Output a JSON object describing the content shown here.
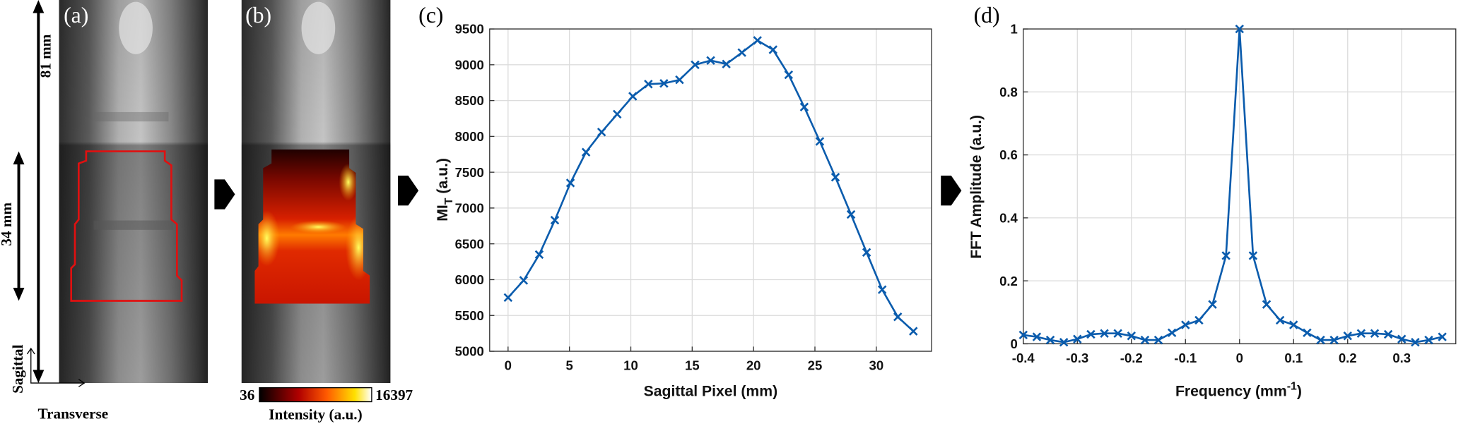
{
  "panels": {
    "a": "(a)",
    "b": "(b)",
    "c": "(c)",
    "d": "(d)"
  },
  "images": {
    "length_full": "81 mm",
    "length_roi": "34 mm",
    "axis_vertical": "Sagittal",
    "axis_horizontal": "Transverse",
    "colorbar": {
      "min": 36,
      "max": 16397,
      "label": "Intensity (a.u.)"
    }
  },
  "chart_data": [
    {
      "type": "line",
      "marker": "x",
      "color": "#0b5cad",
      "grid": true,
      "x_label": "Sagittal Pixel (mm)",
      "y_label": {
        "text": "MI",
        "sub": "T",
        "suffix": " (a.u.)"
      },
      "x": [
        0,
        1.27,
        2.54,
        3.81,
        5.08,
        6.35,
        7.62,
        8.89,
        10.16,
        11.43,
        12.7,
        13.97,
        15.24,
        16.51,
        17.78,
        19.05,
        20.32,
        21.59,
        22.86,
        24.13,
        25.4,
        26.67,
        27.94,
        29.21,
        30.48,
        31.75,
        33.02
      ],
      "values": [
        5750,
        5990,
        6350,
        6830,
        7350,
        7780,
        8060,
        8310,
        8560,
        8730,
        8740,
        8790,
        9000,
        9060,
        9010,
        9170,
        9340,
        9210,
        8860,
        8410,
        7930,
        7430,
        6910,
        6380,
        5860,
        5480,
        5280
      ],
      "xlim": [
        -1.5,
        34.5
      ],
      "xticks": [
        0,
        5,
        10,
        15,
        20,
        25,
        30
      ],
      "ylim": [
        5000,
        9500
      ],
      "yticks": [
        5000,
        5500,
        6000,
        6500,
        7000,
        7500,
        8000,
        8500,
        9000,
        9500
      ]
    },
    {
      "type": "line",
      "marker": "x",
      "color": "#0b5cad",
      "grid": true,
      "x_label": {
        "text": "Frequency (mm",
        "sup": "-1",
        "suffix": ")"
      },
      "y_label": "FFT Amplitude (a.u.)",
      "x": [
        -0.4,
        -0.375,
        -0.35,
        -0.325,
        -0.3,
        -0.275,
        -0.25,
        -0.225,
        -0.2,
        -0.175,
        -0.15,
        -0.125,
        -0.1,
        -0.075,
        -0.05,
        -0.025,
        0,
        0.025,
        0.05,
        0.075,
        0.1,
        0.125,
        0.15,
        0.175,
        0.2,
        0.225,
        0.25,
        0.275,
        0.3,
        0.325,
        0.35,
        0.375
      ],
      "values": [
        0.028,
        0.022,
        0.012,
        0.005,
        0.015,
        0.03,
        0.033,
        0.033,
        0.025,
        0.012,
        0.012,
        0.035,
        0.06,
        0.075,
        0.125,
        0.28,
        1,
        0.28,
        0.125,
        0.075,
        0.06,
        0.035,
        0.012,
        0.012,
        0.025,
        0.033,
        0.033,
        0.03,
        0.015,
        0.005,
        0.012,
        0.022
      ],
      "xlim": [
        -0.4,
        0.4
      ],
      "xticks": [
        -0.4,
        -0.3,
        -0.2,
        -0.1,
        0,
        0.1,
        0.2,
        0.3
      ],
      "ylim": [
        0,
        1
      ],
      "yticks": [
        0,
        0.2,
        0.4,
        0.6,
        0.8,
        1
      ]
    }
  ]
}
